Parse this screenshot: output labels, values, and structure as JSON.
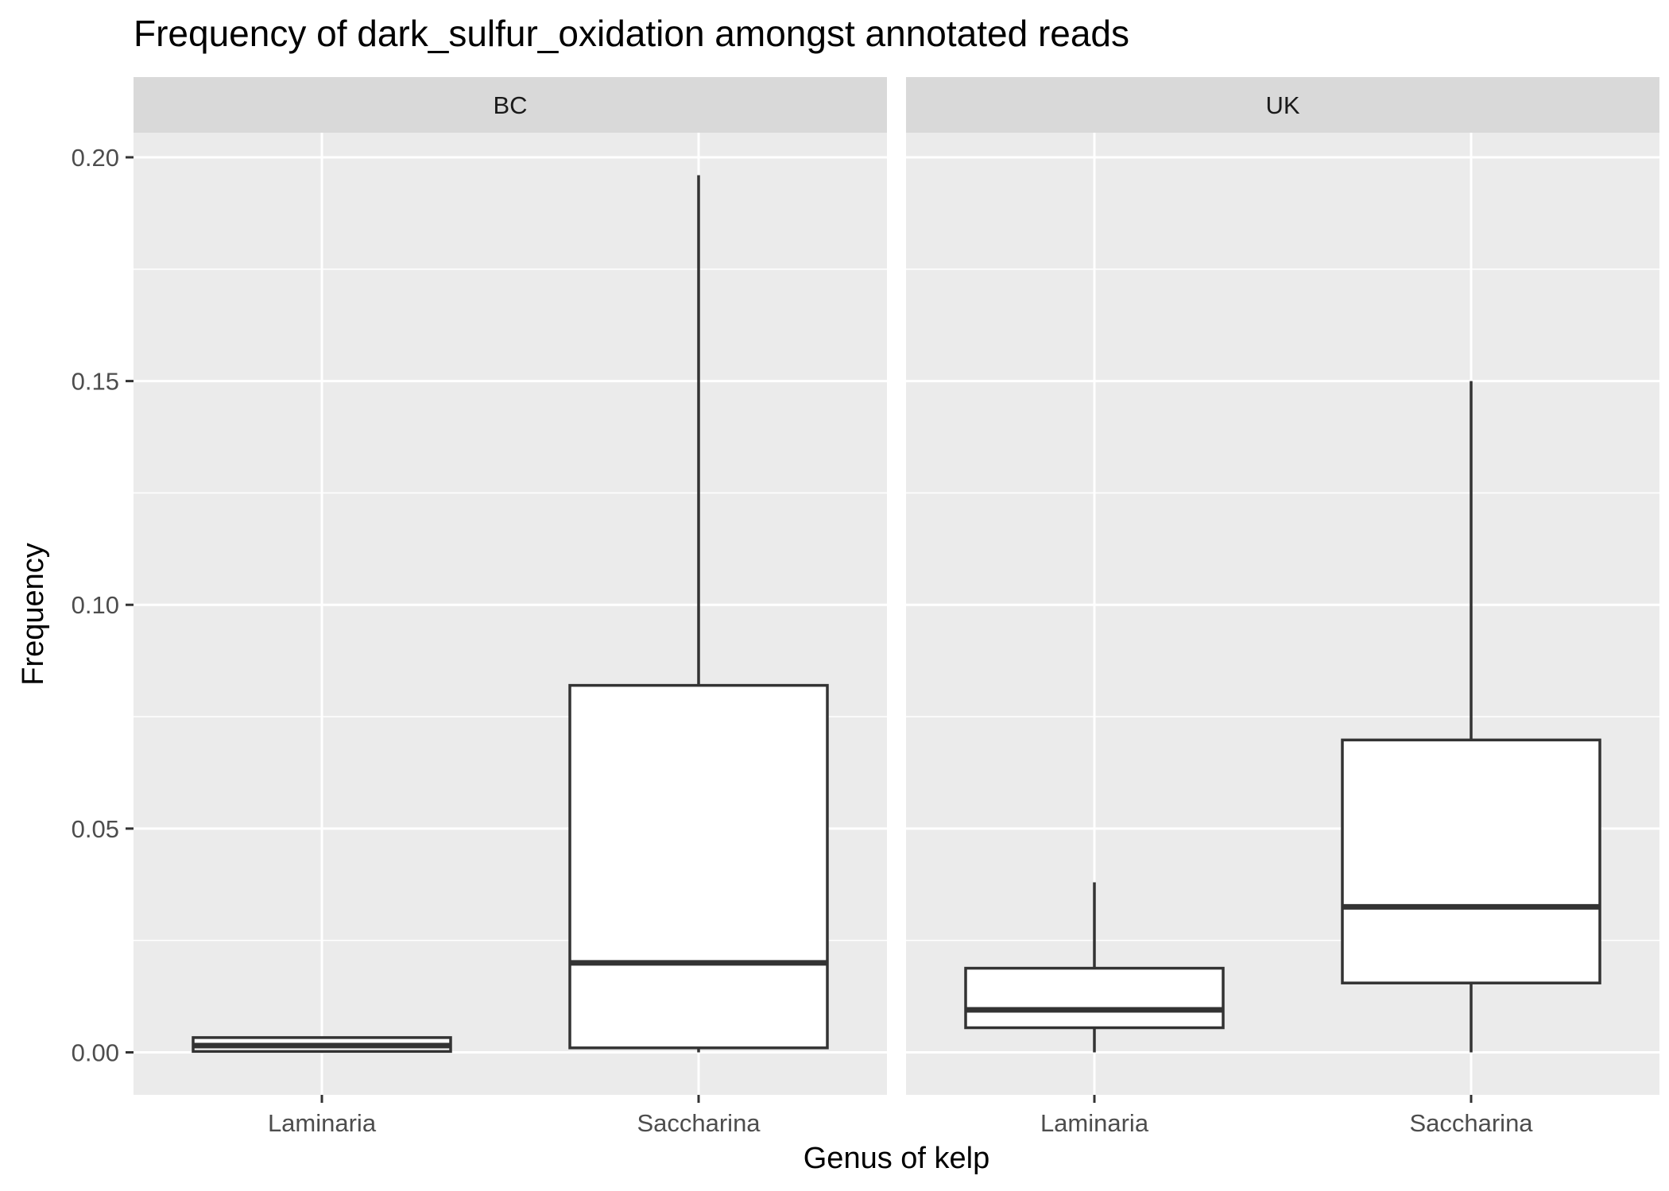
{
  "chart_data": {
    "type": "boxplot",
    "title": "Frequency of dark_sulfur_oxidation amongst annotated reads",
    "xlabel": "Genus of kelp",
    "ylabel": "Frequency",
    "ylim": [
      -0.0095,
      0.2055
    ],
    "y_ticks": [
      0.0,
      0.05,
      0.1,
      0.15,
      0.2
    ],
    "y_tick_labels": [
      "0.00",
      "0.05",
      "0.10",
      "0.15",
      "0.20"
    ],
    "grid": true,
    "legend": "none",
    "categories": [
      "Laminaria",
      "Saccharina"
    ],
    "panels": [
      {
        "label": "BC",
        "boxes": [
          {
            "category": "Laminaria",
            "min": 0.0,
            "q1": 0.0002,
            "median": 0.0015,
            "q3": 0.0033,
            "max": 0.0035
          },
          {
            "category": "Saccharina",
            "min": 0.0,
            "q1": 0.001,
            "median": 0.02,
            "q3": 0.082,
            "max": 0.196
          }
        ]
      },
      {
        "label": "UK",
        "boxes": [
          {
            "category": "Laminaria",
            "min": 0.0,
            "q1": 0.0055,
            "median": 0.0095,
            "q3": 0.0188,
            "max": 0.038
          },
          {
            "category": "Saccharina",
            "min": 0.0,
            "q1": 0.0155,
            "median": 0.0325,
            "q3": 0.0698,
            "max": 0.15
          }
        ]
      }
    ],
    "colors": {
      "panel_background": "#ebebeb",
      "strip_background": "#d9d9d9",
      "grid": "#ffffff",
      "box_fill": "#ffffff",
      "box_line": "#333333",
      "tick": "#333333"
    }
  }
}
